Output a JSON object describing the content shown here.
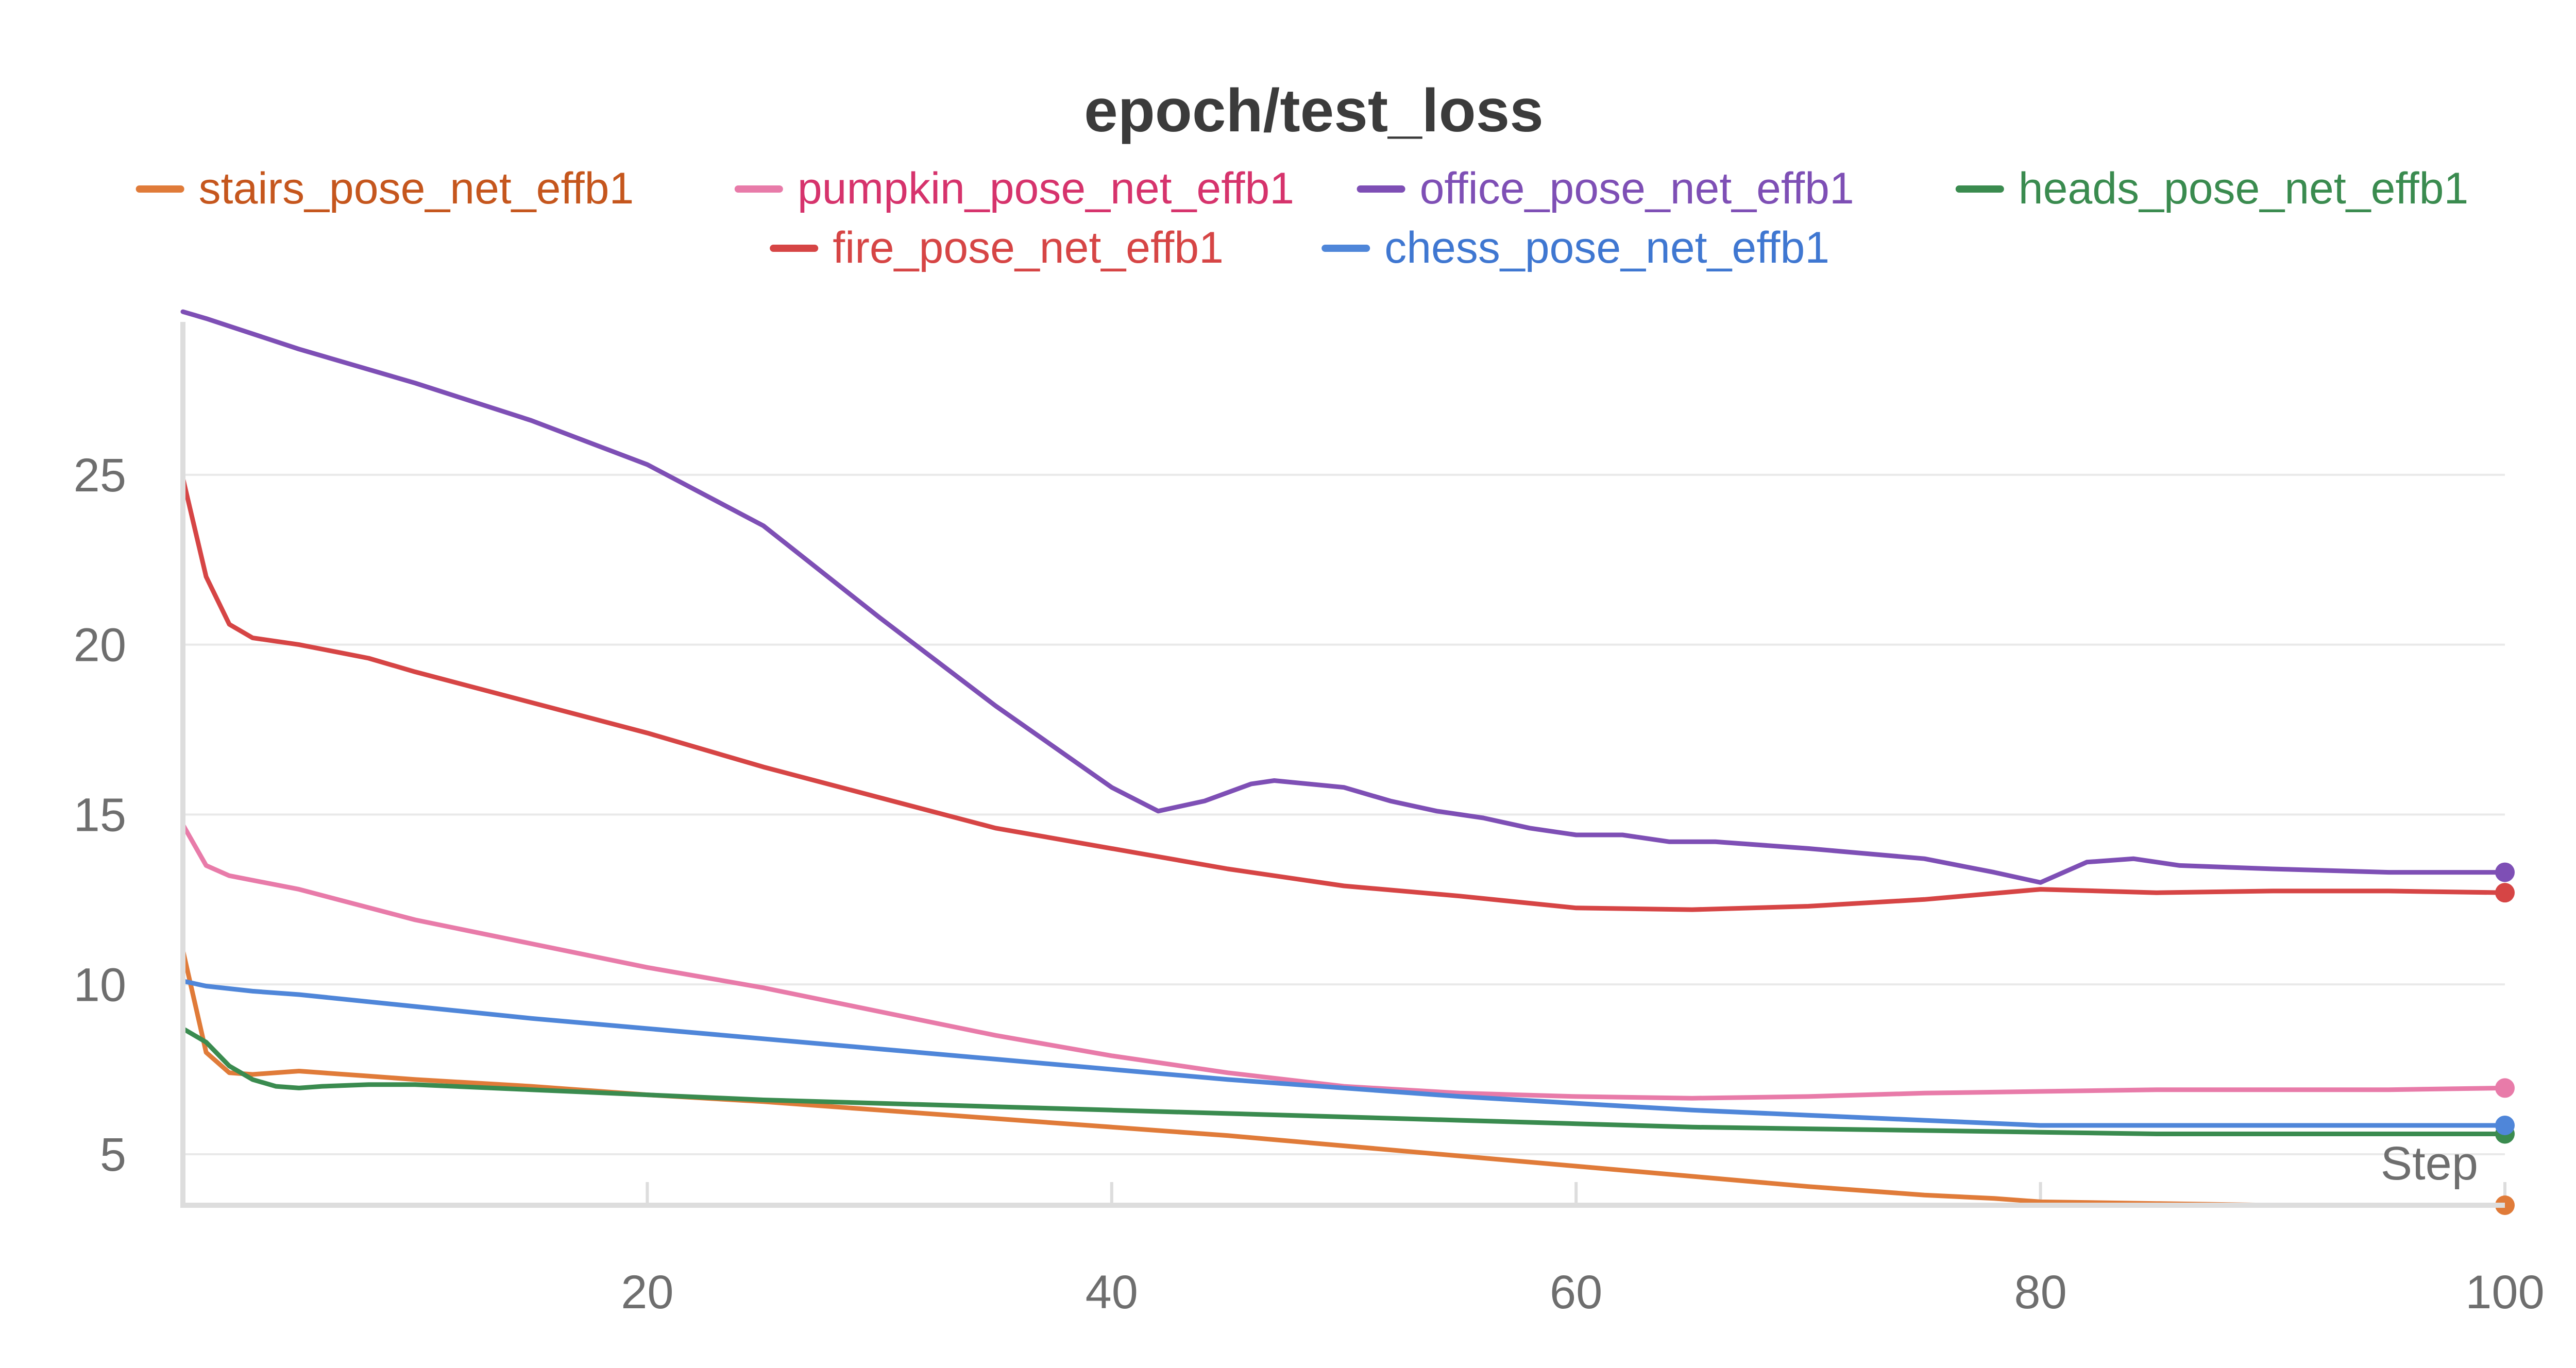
{
  "chart_data": {
    "type": "line",
    "title": "epoch/test_loss",
    "xlabel": "Step",
    "ylabel": "",
    "xlim": [
      0,
      100
    ],
    "ylim": [
      3.5,
      29.5
    ],
    "x_ticks": [
      20,
      40,
      60,
      80,
      100
    ],
    "y_ticks": [
      5,
      10,
      15,
      20,
      25
    ],
    "grid": true,
    "legend_position": "top",
    "series": [
      {
        "name": "stairs_pose_net_effb1",
        "color": "#e07b39",
        "label_color": "#c5561d",
        "x": [
          0,
          1,
          2,
          3,
          4,
          5,
          6,
          8,
          10,
          15,
          20,
          25,
          30,
          35,
          40,
          45,
          50,
          55,
          60,
          65,
          70,
          75,
          78,
          80,
          85,
          90,
          95,
          100
        ],
        "y": [
          11,
          8.0,
          7.4,
          7.35,
          7.4,
          7.45,
          7.4,
          7.3,
          7.2,
          7.0,
          6.75,
          6.55,
          6.3,
          6.05,
          5.8,
          5.55,
          5.25,
          4.95,
          4.65,
          4.35,
          4.05,
          3.8,
          3.7,
          3.6,
          3.55,
          3.5,
          3.45,
          3.4
        ]
      },
      {
        "name": "pumpkin_pose_net_effb1",
        "color": "#e87ba9",
        "label_color": "#d6336c",
        "x": [
          0,
          1,
          2,
          5,
          10,
          15,
          20,
          25,
          30,
          35,
          40,
          45,
          50,
          55,
          60,
          65,
          70,
          75,
          80,
          85,
          90,
          95,
          100
        ],
        "y": [
          14.7,
          13.5,
          13.2,
          12.8,
          11.9,
          11.2,
          10.5,
          9.9,
          9.2,
          8.5,
          7.9,
          7.4,
          7.0,
          6.8,
          6.7,
          6.65,
          6.7,
          6.8,
          6.85,
          6.9,
          6.9,
          6.9,
          6.95
        ]
      },
      {
        "name": "office_pose_net_effb1",
        "color": "#7e4fb5",
        "label_color": "#7e4fb5",
        "x": [
          0,
          1,
          5,
          10,
          15,
          20,
          25,
          30,
          35,
          40,
          42,
          44,
          46,
          47,
          50,
          52,
          54,
          56,
          58,
          60,
          62,
          64,
          66,
          70,
          75,
          78,
          80,
          82,
          84,
          86,
          90,
          95,
          100
        ],
        "y": [
          29.8,
          29.6,
          28.7,
          27.7,
          26.6,
          25.3,
          23.5,
          20.8,
          18.2,
          15.8,
          15.1,
          15.4,
          15.9,
          16.0,
          15.8,
          15.4,
          15.1,
          14.9,
          14.6,
          14.4,
          14.4,
          14.2,
          14.2,
          14.0,
          13.7,
          13.3,
          13.0,
          13.6,
          13.7,
          13.5,
          13.4,
          13.3,
          13.3
        ]
      },
      {
        "name": "heads_pose_net_effb1",
        "color": "#3a8b4f",
        "label_color": "#3a8b4f",
        "x": [
          0,
          1,
          2,
          3,
          4,
          5,
          6,
          8,
          10,
          15,
          20,
          25,
          30,
          35,
          40,
          45,
          50,
          55,
          60,
          65,
          70,
          75,
          80,
          85,
          90,
          95,
          100
        ],
        "y": [
          8.7,
          8.3,
          7.6,
          7.2,
          7.0,
          6.95,
          7.0,
          7.05,
          7.05,
          6.9,
          6.75,
          6.6,
          6.5,
          6.4,
          6.3,
          6.2,
          6.1,
          6.0,
          5.9,
          5.8,
          5.75,
          5.7,
          5.65,
          5.6,
          5.6,
          5.6,
          5.6
        ]
      },
      {
        "name": "fire_pose_net_effb1",
        "color": "#d64545",
        "label_color": "#d64545",
        "x": [
          0,
          1,
          2,
          3,
          5,
          8,
          10,
          15,
          20,
          25,
          30,
          35,
          40,
          45,
          50,
          55,
          60,
          65,
          70,
          75,
          80,
          85,
          90,
          95,
          100
        ],
        "y": [
          24.9,
          22.0,
          20.6,
          20.2,
          20.0,
          19.6,
          19.2,
          18.3,
          17.4,
          16.4,
          15.5,
          14.6,
          14.0,
          13.4,
          12.9,
          12.6,
          12.25,
          12.2,
          12.3,
          12.5,
          12.8,
          12.7,
          12.75,
          12.75,
          12.7
        ]
      },
      {
        "name": "chess_pose_net_effb1",
        "color": "#4f86d9",
        "label_color": "#3f77d1",
        "x": [
          0,
          1,
          3,
          5,
          10,
          15,
          20,
          25,
          30,
          35,
          40,
          45,
          50,
          55,
          60,
          65,
          70,
          75,
          80,
          85,
          90,
          95,
          100
        ],
        "y": [
          10.1,
          9.95,
          9.8,
          9.7,
          9.35,
          9.0,
          8.7,
          8.4,
          8.1,
          7.8,
          7.5,
          7.2,
          6.95,
          6.7,
          6.5,
          6.3,
          6.15,
          6.0,
          5.85,
          5.85,
          5.85,
          5.85,
          5.85
        ]
      }
    ]
  }
}
